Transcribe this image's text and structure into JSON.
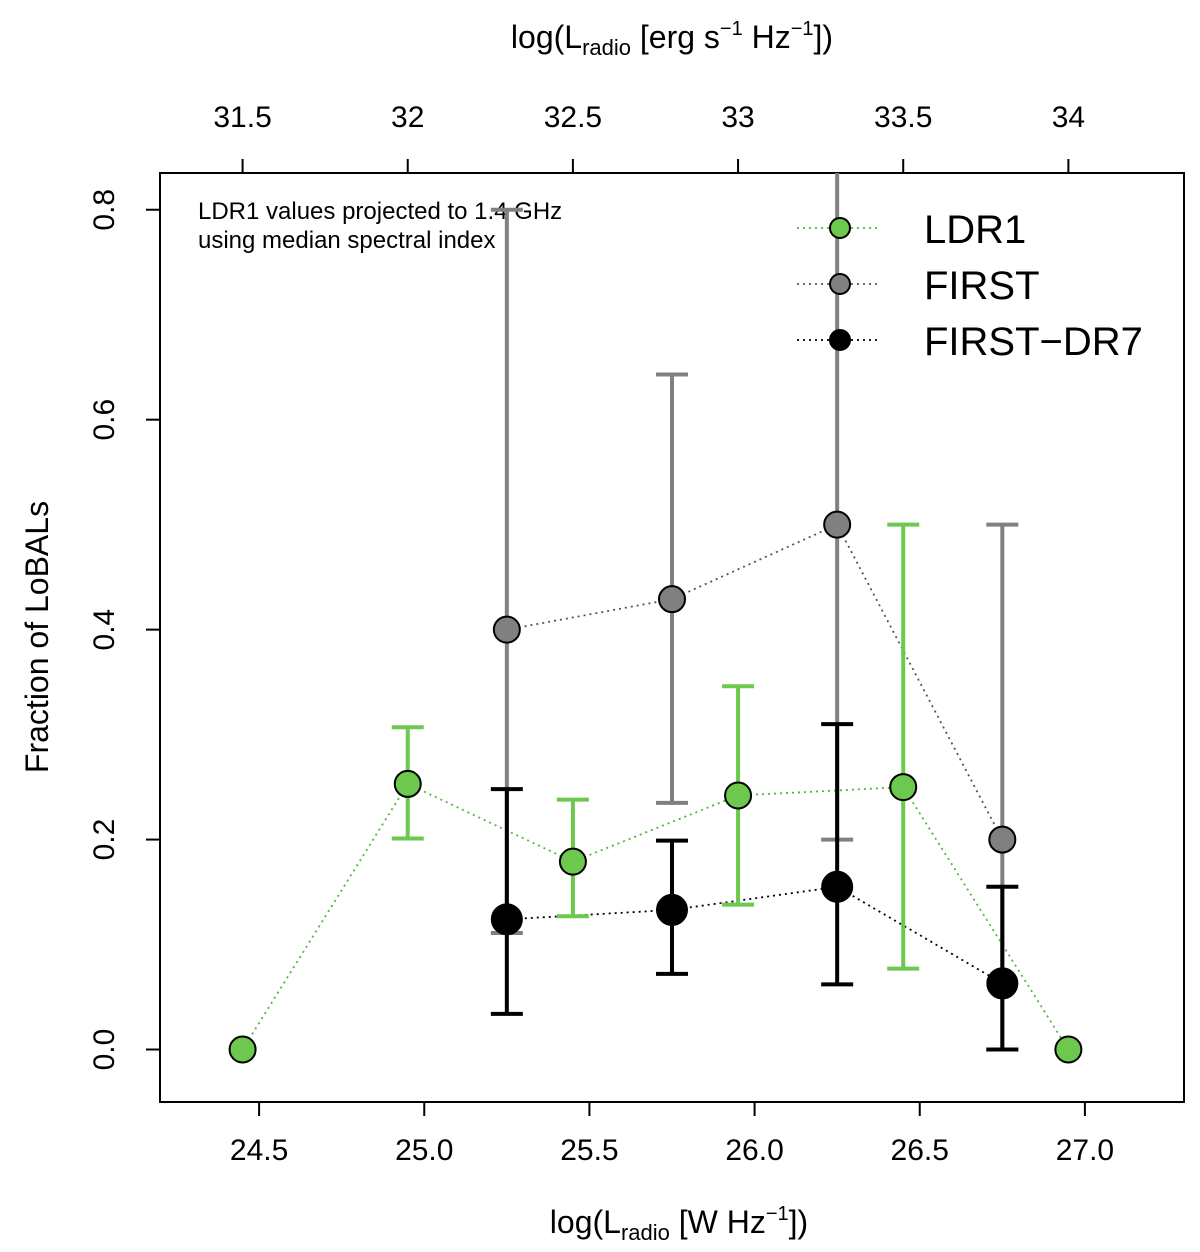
{
  "chart_data": {
    "type": "scatter",
    "ylabel": "Fraction of LoBALs",
    "xlabel": {
      "pre": "log(L",
      "sub": "radio",
      "mid": " [W Hz",
      "sup": "−1",
      "post": "])"
    },
    "x2label": {
      "pre": "log(L",
      "sub": "radio",
      "mid1": " [erg s",
      "sup1": "−1",
      "mid2": " Hz",
      "sup2": "−1",
      "post": "])"
    },
    "xlim": [
      24.2,
      27.3
    ],
    "ylim": [
      -0.05,
      0.835
    ],
    "x_ticks": [
      24.5,
      25.0,
      25.5,
      26.0,
      26.5,
      27.0
    ],
    "x_tick_labels": [
      "24.5",
      "25.0",
      "25.5",
      "26.0",
      "26.5",
      "27.0"
    ],
    "y_ticks": [
      0.0,
      0.2,
      0.4,
      0.6,
      0.8
    ],
    "y_tick_labels": [
      "0.0",
      "0.2",
      "0.4",
      "0.6",
      "0.8"
    ],
    "x2_ticks": [
      31.5,
      32,
      32.5,
      33,
      33.5,
      34
    ],
    "x2_tick_labels": [
      "31.5",
      "32",
      "32.5",
      "33",
      "33.5",
      "34"
    ],
    "x2_offset": 7.05,
    "annotation": [
      "LDR1 values projected to 1.4 GHz",
      "using median spectral index"
    ],
    "legend_position": "top-right",
    "series": [
      {
        "name": "LDR1",
        "color": "#6cc94e",
        "line_color": "#4fb83a",
        "errbar_color": "#6cc94e",
        "x": [
          24.45,
          24.95,
          25.45,
          25.95,
          26.45,
          26.95
        ],
        "y": [
          0.0,
          0.253,
          0.179,
          0.242,
          0.25,
          0.0
        ],
        "err_lo": [
          null,
          0.201,
          0.127,
          0.138,
          0.077,
          null
        ],
        "err_hi": [
          null,
          0.307,
          0.238,
          0.346,
          0.5,
          null
        ]
      },
      {
        "name": "FIRST",
        "color": "#808080",
        "line_color": "#555555",
        "errbar_color": "#808080",
        "x": [
          25.25,
          25.75,
          26.25,
          26.75
        ],
        "y": [
          0.4,
          0.429,
          0.5,
          0.2
        ],
        "err_lo": [
          0.111,
          0.235,
          0.2,
          0.0
        ],
        "err_hi": [
          0.8,
          0.643,
          0.84,
          0.5
        ]
      },
      {
        "name": "FIRST−DR7",
        "color": "#000000",
        "line_color": "#000000",
        "errbar_color": "#000000",
        "x": [
          25.25,
          25.75,
          26.25,
          26.75
        ],
        "y": [
          0.124,
          0.133,
          0.155,
          0.063
        ],
        "err_lo": [
          0.034,
          0.072,
          0.062,
          0.0
        ],
        "err_hi": [
          0.248,
          0.199,
          0.31,
          0.155
        ]
      }
    ]
  }
}
